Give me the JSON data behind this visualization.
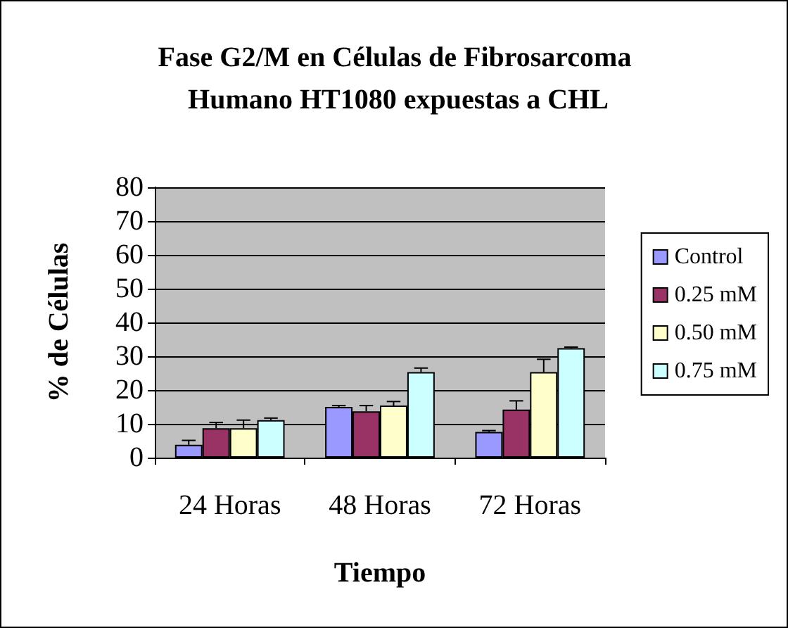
{
  "chart_data": {
    "type": "bar",
    "title": "Fase G2/M en Células de Fibrosarcoma Humano HT1080 expuestas a CHL",
    "xlabel": "Tiempo",
    "ylabel": "% de Células",
    "categories": [
      "24 Horas",
      "48 Horas",
      "72 Horas"
    ],
    "series": [
      {
        "name": "Control",
        "color": "#9999ff",
        "values": [
          3.8,
          15.0,
          7.6
        ],
        "errors": [
          [
            3.8,
            5.1
          ],
          [
            15.0,
            15.4
          ],
          [
            7.6,
            8.0
          ]
        ]
      },
      {
        "name": "0.25 mM",
        "color": "#993366",
        "values": [
          8.7,
          13.7,
          14.2
        ],
        "errors": [
          [
            8.7,
            10.4
          ],
          [
            13.7,
            15.4
          ],
          [
            14.2,
            16.8
          ]
        ]
      },
      {
        "name": "0.50 mM",
        "color": "#ffffcc",
        "values": [
          8.7,
          15.4,
          25.3
        ],
        "errors": [
          [
            8.7,
            11.1
          ],
          [
            15.4,
            16.6
          ],
          [
            25.3,
            29.1
          ]
        ]
      },
      {
        "name": "0.75 mM",
        "color": "#ccffff",
        "values": [
          11.1,
          25.3,
          32.4
        ],
        "errors": [
          [
            11.1,
            11.7
          ],
          [
            25.3,
            26.5
          ],
          [
            32.4,
            32.7
          ]
        ]
      }
    ],
    "ylim": [
      0,
      80
    ],
    "yticks": [
      0,
      10,
      20,
      30,
      40,
      50,
      60,
      70,
      80
    ],
    "grid": "y",
    "legend": "right"
  }
}
